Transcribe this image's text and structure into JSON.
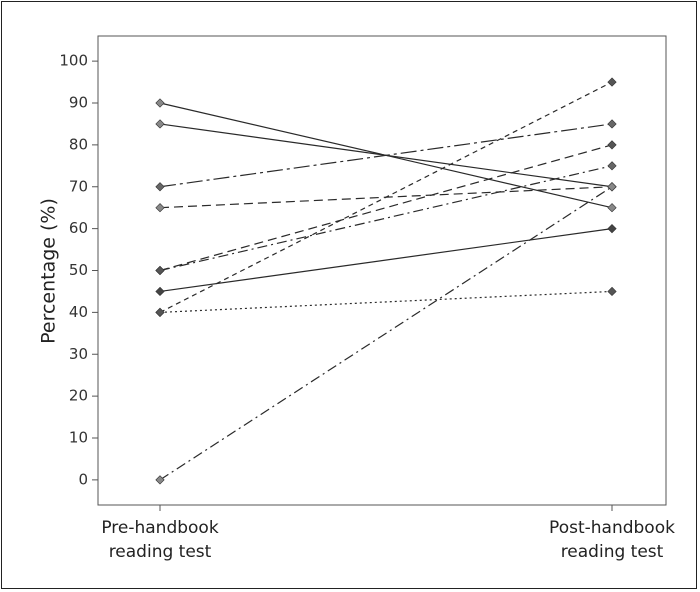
{
  "chart_data": {
    "type": "line",
    "title": "",
    "xlabel": "",
    "ylabel": "Percentage (%)",
    "categories": [
      "Pre-handbook reading test",
      "Post-handbook reading test"
    ],
    "category_lines": [
      [
        "Pre-handbook",
        "reading test"
      ],
      [
        "Post-handbook",
        "reading test"
      ]
    ],
    "yticks": [
      0,
      10,
      20,
      30,
      40,
      50,
      60,
      70,
      80,
      90,
      100
    ],
    "ylim": [
      -6,
      106
    ],
    "grid": false,
    "legend": "none",
    "series": [
      {
        "values": [
          90,
          65
        ],
        "dash": "solid",
        "marker_color": "#888888"
      },
      {
        "values": [
          85,
          70
        ],
        "dash": "solid",
        "marker_color": "#888888"
      },
      {
        "values": [
          70,
          85
        ],
        "dash": "long-dash",
        "marker_color": "#666666"
      },
      {
        "values": [
          65,
          70
        ],
        "dash": "dash",
        "marker_color": "#888888"
      },
      {
        "values": [
          50,
          75
        ],
        "dash": "dash-dot",
        "marker_color": "#666666"
      },
      {
        "values": [
          50,
          80
        ],
        "dash": "dash",
        "marker_color": "#555555"
      },
      {
        "values": [
          45,
          60
        ],
        "dash": "solid",
        "marker_color": "#444444"
      },
      {
        "values": [
          40,
          95
        ],
        "dash": "short-dash",
        "marker_color": "#555555"
      },
      {
        "values": [
          40,
          45
        ],
        "dash": "dot",
        "marker_color": "#555555"
      },
      {
        "values": [
          0,
          70
        ],
        "dash": "dash-dot",
        "marker_color": "#888888"
      }
    ]
  }
}
